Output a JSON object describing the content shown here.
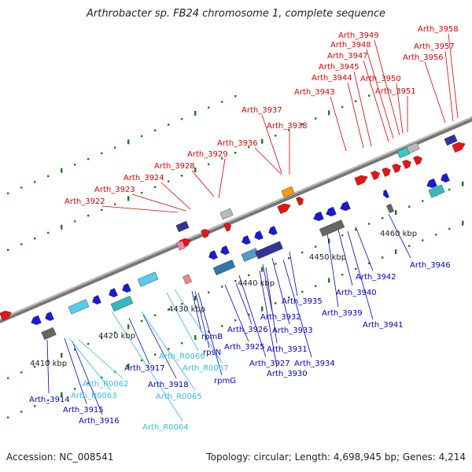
{
  "title": "Arthrobacter sp. FB24 chromosome 1, complete sequence",
  "accession_label": "Accession: NC_008541",
  "summary_label": "Topology: circular; Length: 4,698,945 bp; Genes: 4,214",
  "colors": {
    "forward_label": "#e00000",
    "reverse_label": "#0000cc",
    "rna_label": "#33bbee",
    "backbone": "#888888",
    "tick": "#1a7a1a"
  },
  "scale_labels": [
    "4410 kbp",
    "4420 kbp",
    "4430 kbp",
    "4440 kbp",
    "4450 kbp",
    "4460 kbp"
  ],
  "forward_genes": [
    "Arth_3922",
    "Arth_3923",
    "Arth_3924",
    "Arth_3928",
    "Arth_3929",
    "Arth_3936",
    "Arth_3937",
    "Arth_3938",
    "Arth_3943",
    "Arth_3944",
    "Arth_3945",
    "Arth_3947",
    "Arth_3948",
    "Arth_3949",
    "Arth_3950",
    "Arth_3951",
    "Arth_3956",
    "Arth_3957",
    "Arth_3958"
  ],
  "reverse_genes": [
    "Arth_3914",
    "Arth_3915",
    "Arth_3916",
    "Arth_3917",
    "Arth_3918",
    "rpmB",
    "rpsN",
    "rpmG",
    "Arth_3925",
    "Arth_3926",
    "Arth_3927",
    "Arth_3930",
    "Arth_3931",
    "Arth_3932",
    "Arth_3933",
    "Arth_3934",
    "Arth_3935",
    "Arth_3939",
    "Arth_3940",
    "Arth_3941",
    "Arth_3942",
    "Arth_3946"
  ],
  "rna_genes": [
    "Arth_R0062",
    "Arth_R0063",
    "Arth_R0064",
    "Arth_R0065",
    "Arth_R0066",
    "Arth_R0067"
  ]
}
